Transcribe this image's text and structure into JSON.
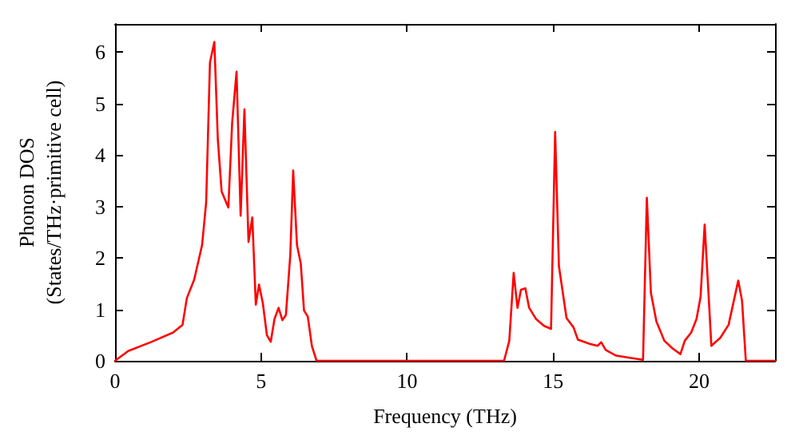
{
  "chart_data": {
    "type": "line",
    "xlabel": "Frequency (THz)",
    "ylabel": "Phonon DOS\n(States/THz·primitive cell)",
    "x": [
      0,
      0.45,
      1.26,
      1.99,
      2.31,
      2.46,
      2.71,
      2.98,
      3.12,
      3.25,
      3.4,
      3.52,
      3.65,
      3.88,
      4.01,
      4.16,
      4.3,
      4.43,
      4.57,
      4.7,
      4.82,
      4.93,
      5.06,
      5.2,
      5.33,
      5.46,
      5.6,
      5.73,
      5.85,
      6.0,
      6.1,
      6.23,
      6.36,
      6.47,
      6.6,
      6.74,
      6.9,
      13.32,
      13.5,
      13.65,
      13.78,
      13.9,
      14.05,
      14.18,
      14.42,
      14.69,
      14.93,
      15.07,
      15.2,
      15.46,
      15.7,
      15.85,
      16.25,
      16.52,
      16.65,
      16.8,
      17.16,
      17.71,
      18.08,
      18.21,
      18.35,
      18.54,
      18.81,
      19.09,
      19.36,
      19.51,
      19.73,
      19.91,
      20.05,
      20.19,
      20.31,
      20.42,
      20.73,
      21.01,
      21.19,
      21.34,
      21.47,
      21.6,
      22.6
    ],
    "series": [
      {
        "color": "#ff0000",
        "values": [
          0,
          0.19,
          0.37,
          0.55,
          0.7,
          1.22,
          1.58,
          2.25,
          3.08,
          5.8,
          6.2,
          4.3,
          3.29,
          2.98,
          4.63,
          5.62,
          2.82,
          4.89,
          2.31,
          2.79,
          1.09,
          1.48,
          1.12,
          0.5,
          0.37,
          0.81,
          1.03,
          0.79,
          0.89,
          2.05,
          3.7,
          2.25,
          1.89,
          0.98,
          0.86,
          0.29,
          0,
          0,
          0.39,
          1.71,
          1.03,
          1.38,
          1.41,
          1.03,
          0.81,
          0.68,
          0.62,
          4.45,
          1.84,
          0.83,
          0.65,
          0.41,
          0.33,
          0.29,
          0.36,
          0.21,
          0.1,
          0.05,
          0.02,
          3.17,
          1.32,
          0.76,
          0.39,
          0.24,
          0.13,
          0.39,
          0.55,
          0.81,
          1.24,
          2.65,
          1.43,
          0.29,
          0.45,
          0.7,
          1.17,
          1.56,
          1.17,
          0,
          0
        ]
      }
    ],
    "xlim": [
      0,
      22.6
    ],
    "ylim": [
      0,
      6.55
    ],
    "xticks": [
      0,
      5,
      10,
      15,
      20
    ],
    "yticks": [
      0,
      1,
      2,
      3,
      4,
      5,
      6
    ],
    "grid": false,
    "marker": "none",
    "line_style": "solid"
  }
}
